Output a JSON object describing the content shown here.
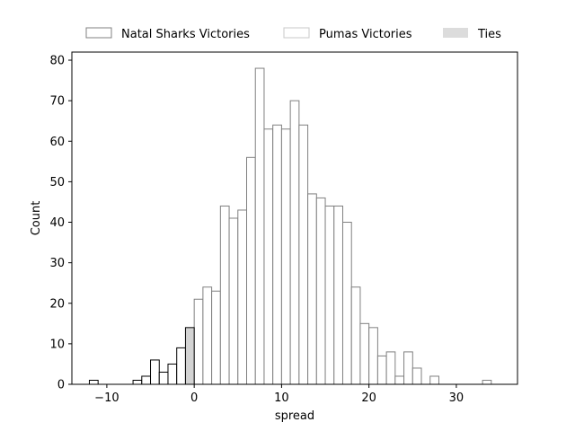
{
  "chart_data": {
    "type": "bar",
    "title": "",
    "xlabel": "spread",
    "ylabel": "Count",
    "xlim": [
      -14,
      37
    ],
    "ylim": [
      0,
      82
    ],
    "xticks": [
      -10,
      0,
      10,
      20,
      30
    ],
    "yticks": [
      0,
      10,
      20,
      30,
      40,
      50,
      60,
      70,
      80
    ],
    "bin_width": 1,
    "legend": {
      "placement": "top-center",
      "columns": 3
    },
    "series": [
      {
        "name": "Natal Sharks Victories",
        "fill": "#ffffff",
        "edge": "#000000",
        "bins": [
          {
            "x": -11.5,
            "count": 1
          },
          {
            "x": -6.5,
            "count": 1
          },
          {
            "x": -5.5,
            "count": 2
          },
          {
            "x": -4.5,
            "count": 6
          },
          {
            "x": -3.5,
            "count": 3
          },
          {
            "x": -2.5,
            "count": 5
          },
          {
            "x": -1.5,
            "count": 9
          }
        ]
      },
      {
        "name": "Pumas Victories",
        "fill": "#ffffff",
        "edge": "#808080",
        "bins": [
          {
            "x": 0.5,
            "count": 21
          },
          {
            "x": 1.5,
            "count": 24
          },
          {
            "x": 2.5,
            "count": 23
          },
          {
            "x": 3.5,
            "count": 44
          },
          {
            "x": 4.5,
            "count": 41
          },
          {
            "x": 5.5,
            "count": 43
          },
          {
            "x": 6.5,
            "count": 56
          },
          {
            "x": 7.5,
            "count": 78
          },
          {
            "x": 8.5,
            "count": 63
          },
          {
            "x": 9.5,
            "count": 64
          },
          {
            "x": 10.5,
            "count": 63
          },
          {
            "x": 11.5,
            "count": 70
          },
          {
            "x": 12.5,
            "count": 64
          },
          {
            "x": 13.5,
            "count": 47
          },
          {
            "x": 14.5,
            "count": 46
          },
          {
            "x": 15.5,
            "count": 44
          },
          {
            "x": 16.5,
            "count": 44
          },
          {
            "x": 17.5,
            "count": 40
          },
          {
            "x": 18.5,
            "count": 24
          },
          {
            "x": 19.5,
            "count": 15
          },
          {
            "x": 20.5,
            "count": 14
          },
          {
            "x": 21.5,
            "count": 7
          },
          {
            "x": 22.5,
            "count": 8
          },
          {
            "x": 23.5,
            "count": 2
          },
          {
            "x": 24.5,
            "count": 8
          },
          {
            "x": 25.5,
            "count": 4
          },
          {
            "x": 27.5,
            "count": 2
          },
          {
            "x": 33.5,
            "count": 1
          }
        ]
      },
      {
        "name": "Ties",
        "fill": "#d3d3d3",
        "edge": "#000000",
        "bins": [
          {
            "x": -0.5,
            "count": 14
          }
        ]
      }
    ]
  }
}
